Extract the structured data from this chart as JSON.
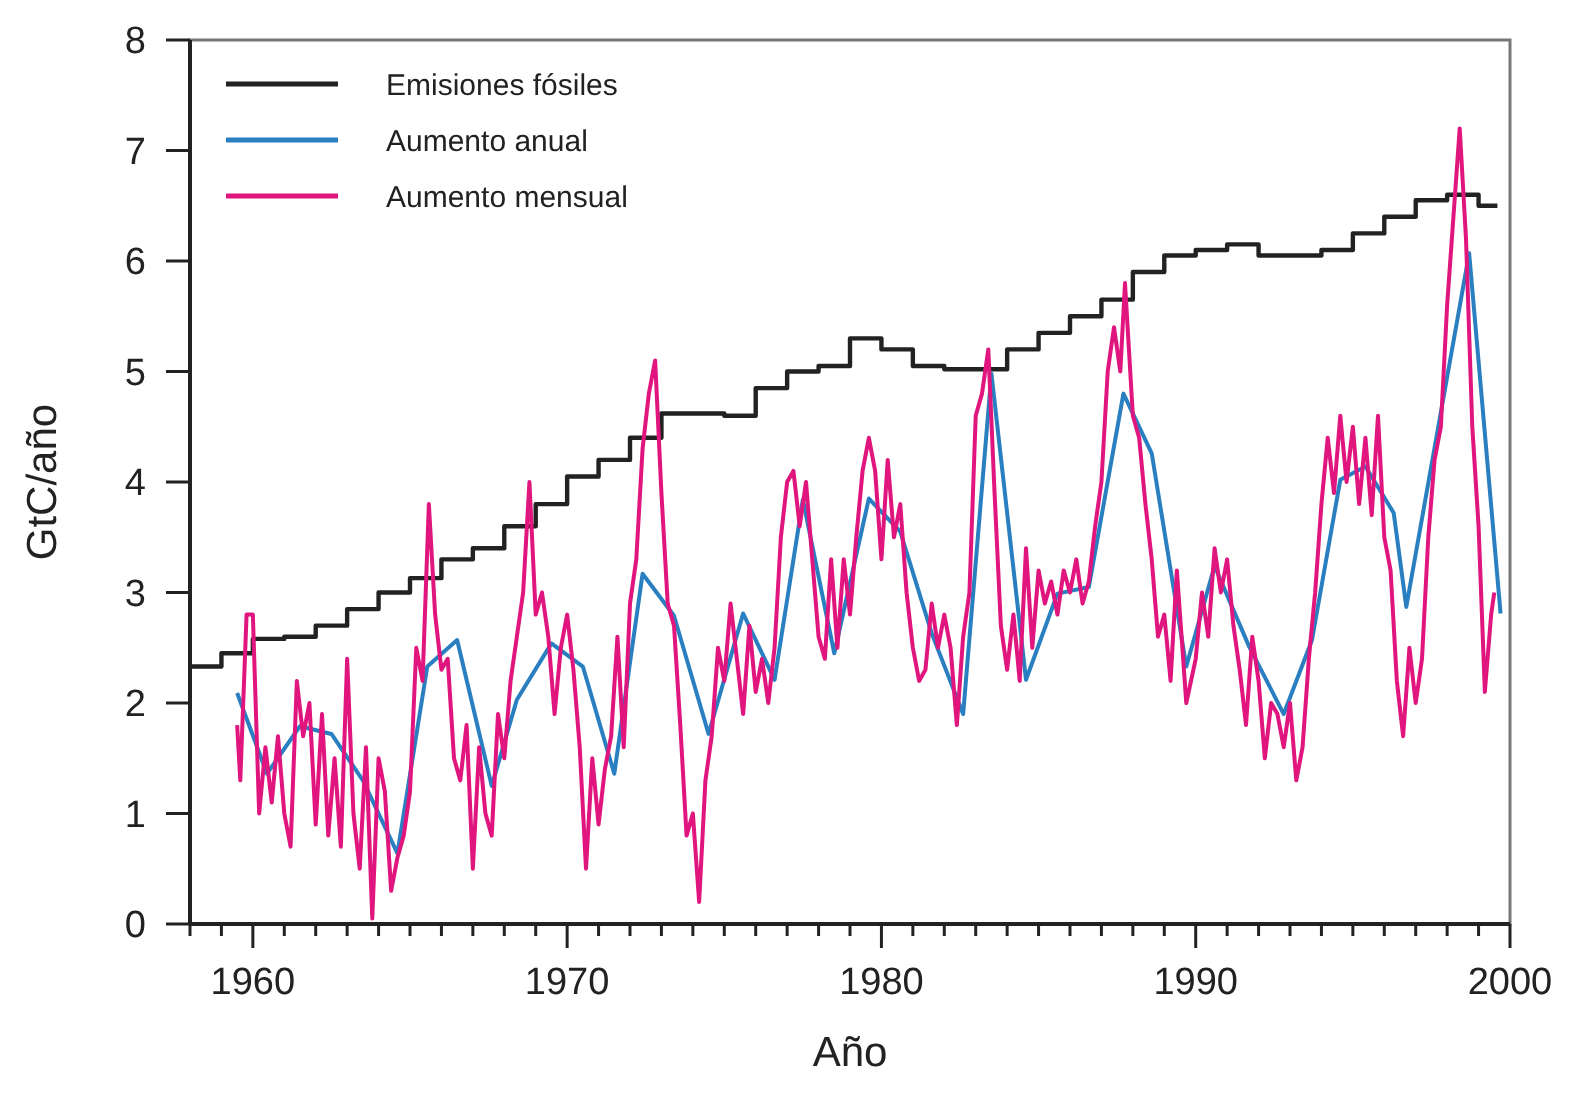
{
  "chart_data": {
    "type": "line",
    "xlabel": "Año",
    "ylabel": "GtC/año",
    "xlim": [
      1958,
      2000
    ],
    "ylim": [
      0,
      8
    ],
    "xticks": [
      {
        "value": 1958,
        "label": null
      },
      {
        "value": 1959,
        "label": null
      },
      1960,
      {
        "value": 1961,
        "label": null
      },
      {
        "value": 1962,
        "label": null
      },
      {
        "value": 1963,
        "label": null
      },
      {
        "value": 1964,
        "label": null
      },
      {
        "value": 1965,
        "label": null
      },
      {
        "value": 1966,
        "label": null
      },
      {
        "value": 1967,
        "label": null
      },
      {
        "value": 1968,
        "label": null
      },
      {
        "value": 1969,
        "label": null
      },
      1970,
      {
        "value": 1971,
        "label": null
      },
      {
        "value": 1972,
        "label": null
      },
      {
        "value": 1973,
        "label": null
      },
      {
        "value": 1974,
        "label": null
      },
      {
        "value": 1975,
        "label": null
      },
      {
        "value": 1976,
        "label": null
      },
      {
        "value": 1977,
        "label": null
      },
      {
        "value": 1978,
        "label": null
      },
      {
        "value": 1979,
        "label": null
      },
      1980,
      {
        "value": 1981,
        "label": null
      },
      {
        "value": 1982,
        "label": null
      },
      {
        "value": 1983,
        "label": null
      },
      {
        "value": 1984,
        "label": null
      },
      {
        "value": 1985,
        "label": null
      },
      {
        "value": 1986,
        "label": null
      },
      {
        "value": 1987,
        "label": null
      },
      {
        "value": 1988,
        "label": null
      },
      {
        "value": 1989,
        "label": null
      },
      1990,
      {
        "value": 1991,
        "label": null
      },
      {
        "value": 1992,
        "label": null
      },
      {
        "value": 1993,
        "label": null
      },
      {
        "value": 1994,
        "label": null
      },
      {
        "value": 1995,
        "label": null
      },
      {
        "value": 1996,
        "label": null
      },
      {
        "value": 1997,
        "label": null
      },
      {
        "value": 1998,
        "label": null
      },
      {
        "value": 1999,
        "label": null
      },
      2000
    ],
    "yticks": [
      0,
      1,
      2,
      3,
      4,
      5,
      6,
      7,
      8
    ],
    "legend": "top left",
    "line_style": "solid",
    "series": [
      {
        "name": "Emisiones fósiles",
        "type": "step",
        "color": "#222222",
        "x": [
          1958,
          1959,
          1960,
          1961,
          1962,
          1963,
          1964,
          1965,
          1966,
          1967,
          1968,
          1969,
          1970,
          1971,
          1972,
          1973,
          1974,
          1975,
          1976,
          1977,
          1978,
          1979,
          1980,
          1981,
          1982,
          1983,
          1984,
          1985,
          1986,
          1987,
          1988,
          1989,
          1990,
          1991,
          1992,
          1993,
          1994,
          1995,
          1996,
          1997,
          1998,
          1999,
          1999.6
        ],
        "values": [
          2.33,
          2.45,
          2.58,
          2.6,
          2.7,
          2.85,
          3.0,
          3.13,
          3.3,
          3.4,
          3.6,
          3.8,
          4.05,
          4.2,
          4.4,
          4.62,
          4.62,
          4.6,
          4.85,
          5.0,
          5.05,
          5.3,
          5.2,
          5.05,
          5.02,
          5.02,
          5.2,
          5.35,
          5.5,
          5.65,
          5.9,
          6.05,
          6.1,
          6.15,
          6.05,
          6.05,
          6.1,
          6.25,
          6.4,
          6.55,
          6.6,
          6.5,
          6.5
        ]
      },
      {
        "name": "Aumento anual",
        "color": "#2a7fc1",
        "x": [
          1959.5,
          1960.45,
          1961.5,
          1962.5,
          1963.5,
          1964.6,
          1965.55,
          1966.5,
          1967.6,
          1968.4,
          1969.5,
          1970.5,
          1971.5,
          1972.4,
          1973.4,
          1974.5,
          1975.6,
          1976.6,
          1977.5,
          1978.5,
          1979.6,
          1980.6,
          1981.6,
          1982.6,
          1983.5,
          1984.6,
          1985.6,
          1986.6,
          1987.7,
          1988.6,
          1989.7,
          1990.6,
          1991.7,
          1992.8,
          1993.7,
          1994.6,
          1995.4,
          1996.3,
          1996.7,
          1998.7,
          1999.7
        ],
        "values": [
          2.09,
          1.36,
          1.79,
          1.72,
          1.3,
          0.64,
          2.33,
          2.57,
          1.25,
          2.03,
          2.54,
          2.33,
          1.36,
          3.17,
          2.79,
          1.72,
          2.81,
          2.21,
          3.84,
          2.45,
          3.85,
          3.55,
          2.63,
          1.9,
          4.98,
          2.21,
          2.99,
          3.05,
          4.8,
          4.26,
          2.33,
          3.24,
          2.51,
          1.9,
          2.57,
          4.02,
          4.14,
          3.72,
          2.87,
          6.07,
          2.81
        ]
      },
      {
        "name": "Aumento mensual",
        "color": "#e0157e",
        "x": [
          1959.5,
          1959.6,
          1959.8,
          1960.0,
          1960.2,
          1960.4,
          1960.6,
          1960.8,
          1961.0,
          1961.2,
          1961.4,
          1961.6,
          1961.8,
          1962.0,
          1962.2,
          1962.4,
          1962.6,
          1962.8,
          1963.0,
          1963.2,
          1963.4,
          1963.6,
          1963.8,
          1964.0,
          1964.2,
          1964.4,
          1964.6,
          1964.8,
          1965.0,
          1965.2,
          1965.4,
          1965.6,
          1965.8,
          1966.0,
          1966.2,
          1966.4,
          1966.6,
          1966.8,
          1967.0,
          1967.2,
          1967.4,
          1967.6,
          1967.8,
          1968.0,
          1968.2,
          1968.4,
          1968.6,
          1968.8,
          1969.0,
          1969.2,
          1969.4,
          1969.6,
          1969.8,
          1970.0,
          1970.2,
          1970.4,
          1970.6,
          1970.8,
          1971.0,
          1971.2,
          1971.4,
          1971.6,
          1971.8,
          1972.0,
          1972.2,
          1972.4,
          1972.6,
          1972.8,
          1973.0,
          1973.2,
          1973.4,
          1973.6,
          1973.8,
          1974.0,
          1974.2,
          1974.4,
          1974.6,
          1974.8,
          1975.0,
          1975.2,
          1975.4,
          1975.6,
          1975.8,
          1976.0,
          1976.2,
          1976.4,
          1976.6,
          1976.8,
          1977.0,
          1977.2,
          1977.4,
          1977.6,
          1977.8,
          1978.0,
          1978.2,
          1978.4,
          1978.6,
          1978.8,
          1979.0,
          1979.2,
          1979.4,
          1979.6,
          1979.8,
          1980.0,
          1980.2,
          1980.4,
          1980.6,
          1980.8,
          1981.0,
          1981.2,
          1981.4,
          1981.6,
          1981.8,
          1982.0,
          1982.2,
          1982.4,
          1982.6,
          1982.8,
          1983.0,
          1983.2,
          1983.4,
          1983.6,
          1983.8,
          1984.0,
          1984.2,
          1984.4,
          1984.6,
          1984.8,
          1985.0,
          1985.2,
          1985.4,
          1985.6,
          1985.8,
          1986.0,
          1986.2,
          1986.4,
          1986.6,
          1986.8,
          1987.0,
          1987.2,
          1987.4,
          1987.6,
          1987.75,
          1988.0,
          1988.2,
          1988.4,
          1988.6,
          1988.8,
          1989.0,
          1989.2,
          1989.4,
          1989.7,
          1990.0,
          1990.2,
          1990.4,
          1990.6,
          1990.8,
          1991.0,
          1991.2,
          1991.4,
          1991.6,
          1991.8,
          1992.0,
          1992.2,
          1992.4,
          1992.6,
          1992.8,
          1993.0,
          1993.2,
          1993.4,
          1993.6,
          1993.8,
          1994.0,
          1994.2,
          1994.4,
          1994.6,
          1994.8,
          1995.0,
          1995.2,
          1995.4,
          1995.6,
          1995.8,
          1996.0,
          1996.2,
          1996.4,
          1996.6,
          1996.8,
          1997.0,
          1997.2,
          1997.4,
          1997.6,
          1997.8,
          1998.0,
          1998.2,
          1998.4,
          1998.6,
          1998.8,
          1999.0,
          1999.2,
          1999.4,
          1999.5
        ],
        "values": [
          1.8,
          1.3,
          2.8,
          2.8,
          1.0,
          1.6,
          1.1,
          1.7,
          1.0,
          0.7,
          2.2,
          1.7,
          2.0,
          0.9,
          1.9,
          0.8,
          1.5,
          0.7,
          2.4,
          1.0,
          0.5,
          1.6,
          0.05,
          1.5,
          1.2,
          0.3,
          0.6,
          0.8,
          1.2,
          2.5,
          2.2,
          3.8,
          2.8,
          2.3,
          2.4,
          1.5,
          1.3,
          1.8,
          0.5,
          1.6,
          1.0,
          0.8,
          1.9,
          1.5,
          2.2,
          2.6,
          3.0,
          4.0,
          2.8,
          3.0,
          2.6,
          1.9,
          2.5,
          2.8,
          2.3,
          1.6,
          0.5,
          1.5,
          0.9,
          1.4,
          1.7,
          2.6,
          1.6,
          2.9,
          3.3,
          4.3,
          4.8,
          5.1,
          3.9,
          2.9,
          2.7,
          1.8,
          0.8,
          1.0,
          0.2,
          1.3,
          1.7,
          2.5,
          2.2,
          2.9,
          2.4,
          1.9,
          2.7,
          2.1,
          2.4,
          2.0,
          2.5,
          3.5,
          4.0,
          4.1,
          3.6,
          4.0,
          3.3,
          2.6,
          2.4,
          3.3,
          2.5,
          3.3,
          2.8,
          3.5,
          4.1,
          4.4,
          4.1,
          3.3,
          4.2,
          3.5,
          3.8,
          3.0,
          2.5,
          2.2,
          2.3,
          2.9,
          2.5,
          2.8,
          2.5,
          1.8,
          2.6,
          3.0,
          4.6,
          4.8,
          5.2,
          3.9,
          2.7,
          2.3,
          2.8,
          2.2,
          3.4,
          2.5,
          3.2,
          2.9,
          3.1,
          2.8,
          3.2,
          3.0,
          3.3,
          2.9,
          3.1,
          3.6,
          4.0,
          5.0,
          5.4,
          5.0,
          5.8,
          4.6,
          4.4,
          3.8,
          3.3,
          2.6,
          2.8,
          2.2,
          3.2,
          2.0,
          2.4,
          3.0,
          2.6,
          3.4,
          3.0,
          3.3,
          2.7,
          2.3,
          1.8,
          2.6,
          2.2,
          1.5,
          2.0,
          1.9,
          1.6,
          2.0,
          1.3,
          1.6,
          2.4,
          3.0,
          3.8,
          4.4,
          3.9,
          4.6,
          4.0,
          4.5,
          3.8,
          4.4,
          3.7,
          4.6,
          3.5,
          3.2,
          2.2,
          1.7,
          2.5,
          2.0,
          2.4,
          3.5,
          4.2,
          4.5,
          5.6,
          6.4,
          7.2,
          6.2,
          4.5,
          3.6,
          2.1,
          2.8,
          3.0
        ]
      }
    ]
  }
}
